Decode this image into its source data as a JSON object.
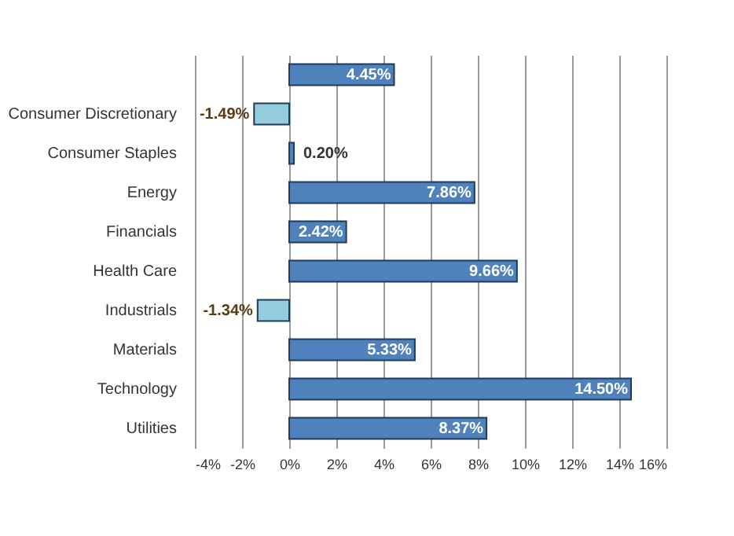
{
  "chart_data": {
    "type": "bar",
    "orientation": "horizontal",
    "categories": [
      null,
      "Consumer Discretionary",
      "Consumer Staples",
      "Energy",
      "Financials",
      "Health Care",
      "Industrials",
      "Materials",
      "Technology",
      "Utilities"
    ],
    "values": [
      4.45,
      -1.49,
      0.2,
      7.86,
      2.42,
      9.66,
      -1.34,
      5.33,
      14.5,
      8.37
    ],
    "colors": [
      "#4f81bd",
      "#93cddd",
      "#4f81bd",
      "#4f81bd",
      "#4f81bd",
      "#4f81bd",
      "#93cddd",
      "#4f81bd",
      "#4f81bd",
      "#4f81bd"
    ],
    "value_labels": [
      "4.45%",
      "-1.49%",
      "0.20%",
      "7.86%",
      "2.42%",
      "9.66%",
      "-1.34%",
      "5.33%",
      "14.50%",
      "8.37%"
    ],
    "xlim": [
      -4,
      16
    ],
    "xticks": [
      {
        "value": -4,
        "label": "-4%"
      },
      {
        "value": -2,
        "label": "-2%"
      },
      {
        "value": 0,
        "label": "0%"
      },
      {
        "value": 2,
        "label": "2%"
      },
      {
        "value": 4,
        "label": "4%"
      },
      {
        "value": 6,
        "label": "6%"
      },
      {
        "value": 8,
        "label": "8%"
      },
      {
        "value": 10,
        "label": "10%"
      },
      {
        "value": 12,
        "label": "12%"
      },
      {
        "value": 14,
        "label": "14%"
      },
      {
        "value": 16,
        "label": "16%"
      }
    ],
    "grid": "x"
  }
}
